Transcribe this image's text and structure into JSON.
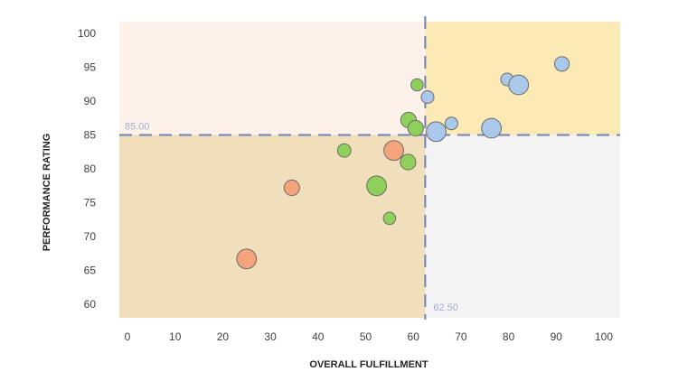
{
  "chart_data": {
    "type": "scatter",
    "variant": "bubble-quadrant",
    "xlabel": "OVERALL FULFILLMENT",
    "ylabel": "PERFORMANCE RATING",
    "xlim": [
      0,
      100
    ],
    "ylim": [
      58,
      102
    ],
    "x_ticks": [
      "0",
      "10",
      "20",
      "30",
      "40",
      "50",
      "60",
      "70",
      "80",
      "90",
      "100"
    ],
    "y_ticks": [
      "60",
      "65",
      "70",
      "75",
      "80",
      "85",
      "90",
      "95",
      "100"
    ],
    "grid": false,
    "reference_lines": {
      "x": {
        "value": 62.5,
        "label": "62.50"
      },
      "y": {
        "value": 85.0,
        "label": "85.00"
      }
    },
    "quadrant_colors": {
      "top_left": "#fdf1ea",
      "top_right": "#fbe9b6",
      "bottom_left": "#f0dfba",
      "bottom_right": "#f3f3f3"
    },
    "reference_line_color": "#6f83b6",
    "series": [
      {
        "color": "#f4a37a",
        "points": [
          {
            "x": 25,
            "y": 66.7,
            "size": 3
          },
          {
            "x": 34.5,
            "y": 77.2,
            "size": 2
          },
          {
            "x": 55.9,
            "y": 82.7,
            "size": 3
          }
        ]
      },
      {
        "color": "#8fd05a",
        "points": [
          {
            "x": 45.5,
            "y": 82.7,
            "size": 1.5
          },
          {
            "x": 52.3,
            "y": 77.5,
            "size": 3
          },
          {
            "x": 55.0,
            "y": 72.7,
            "size": 1.2
          },
          {
            "x": 58.9,
            "y": 81.0,
            "size": 2
          },
          {
            "x": 59.0,
            "y": 87.2,
            "size": 2
          },
          {
            "x": 60.5,
            "y": 86.0,
            "size": 2
          },
          {
            "x": 60.8,
            "y": 92.4,
            "size": 1.2
          }
        ]
      },
      {
        "color": "#a9c8ea",
        "points": [
          {
            "x": 63.0,
            "y": 90.6,
            "size": 1.3
          },
          {
            "x": 64.8,
            "y": 85.5,
            "size": 3
          },
          {
            "x": 68.0,
            "y": 86.7,
            "size": 1.3
          },
          {
            "x": 76.4,
            "y": 86.0,
            "size": 3
          },
          {
            "x": 79.7,
            "y": 93.2,
            "size": 1.3
          },
          {
            "x": 82.1,
            "y": 92.4,
            "size": 3
          },
          {
            "x": 91.2,
            "y": 95.5,
            "size": 1.8
          }
        ]
      }
    ]
  }
}
